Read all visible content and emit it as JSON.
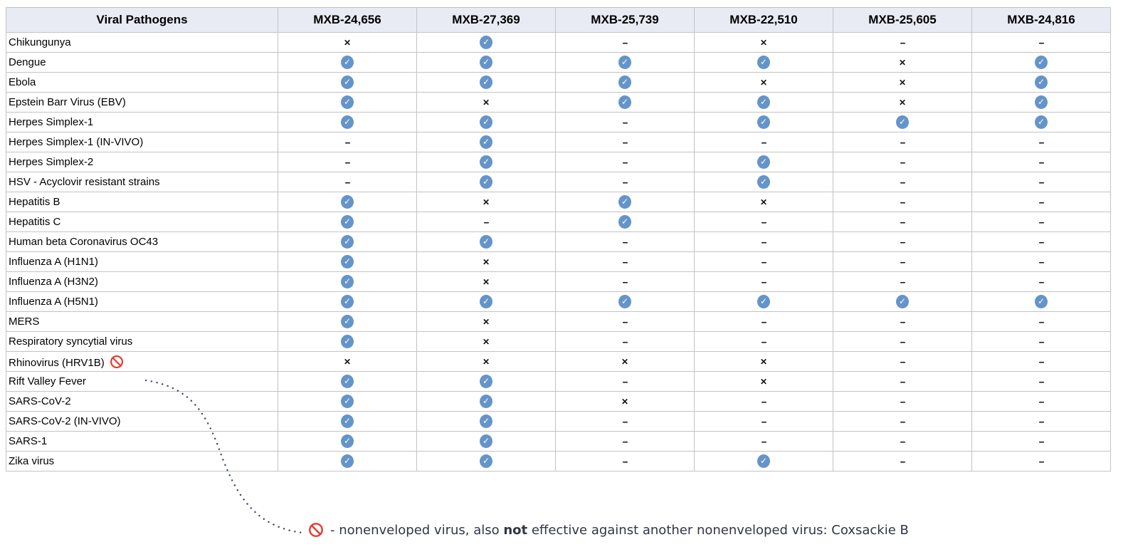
{
  "table": {
    "columns": [
      "Viral Pathogens",
      "MXB-24,656",
      "MXB-27,369",
      "MXB-25,739",
      "MXB-22,510",
      "MXB-25,605",
      "MXB-24,816"
    ],
    "rows": [
      {
        "pathogen": "Chikungunya",
        "banned": false,
        "results": [
          "x",
          "check",
          "dash",
          "x",
          "dash",
          "dash"
        ]
      },
      {
        "pathogen": "Dengue",
        "banned": false,
        "results": [
          "check",
          "check",
          "check",
          "check",
          "x",
          "check"
        ]
      },
      {
        "pathogen": "Ebola",
        "banned": false,
        "results": [
          "check",
          "check",
          "check",
          "x",
          "x",
          "check"
        ]
      },
      {
        "pathogen": "Epstein Barr Virus (EBV)",
        "banned": false,
        "results": [
          "check",
          "x",
          "check",
          "check",
          "x",
          "check"
        ]
      },
      {
        "pathogen": "Herpes Simplex-1",
        "banned": false,
        "results": [
          "check",
          "check",
          "dash",
          "check",
          "check",
          "check"
        ]
      },
      {
        "pathogen": "Herpes Simplex-1 (IN-VIVO)",
        "banned": false,
        "results": [
          "dash",
          "check",
          "dash",
          "dash",
          "dash",
          "dash"
        ]
      },
      {
        "pathogen": "Herpes Simplex-2",
        "banned": false,
        "results": [
          "dash",
          "check",
          "dash",
          "check",
          "dash",
          "dash"
        ]
      },
      {
        "pathogen": "HSV - Acyclovir resistant strains",
        "banned": false,
        "results": [
          "dash",
          "check",
          "dash",
          "check",
          "dash",
          "dash"
        ]
      },
      {
        "pathogen": "Hepatitis B",
        "banned": false,
        "results": [
          "check",
          "x",
          "check",
          "x",
          "dash",
          "dash"
        ]
      },
      {
        "pathogen": "Hepatitis C",
        "banned": false,
        "results": [
          "check",
          "dash",
          "check",
          "dash",
          "dash",
          "dash"
        ]
      },
      {
        "pathogen": "Human beta Coronavirus OC43",
        "banned": false,
        "results": [
          "check",
          "check",
          "dash",
          "dash",
          "dash",
          "dash"
        ]
      },
      {
        "pathogen": "Influenza A (H1N1)",
        "banned": false,
        "results": [
          "check",
          "x",
          "dash",
          "dash",
          "dash",
          "dash"
        ]
      },
      {
        "pathogen": "Influenza A (H3N2)",
        "banned": false,
        "results": [
          "check",
          "x",
          "dash",
          "dash",
          "dash",
          "dash"
        ]
      },
      {
        "pathogen": "Influenza A (H5N1)",
        "banned": false,
        "results": [
          "check",
          "check",
          "check",
          "check",
          "check",
          "check"
        ]
      },
      {
        "pathogen": "MERS",
        "banned": false,
        "results": [
          "check",
          "x",
          "dash",
          "dash",
          "dash",
          "dash"
        ]
      },
      {
        "pathogen": "Respiratory syncytial virus",
        "banned": false,
        "results": [
          "check",
          "x",
          "dash",
          "dash",
          "dash",
          "dash"
        ]
      },
      {
        "pathogen": "Rhinovirus (HRV1B)",
        "banned": true,
        "results": [
          "x",
          "x",
          "x",
          "x",
          "dash",
          "dash"
        ]
      },
      {
        "pathogen": "Rift Valley Fever",
        "banned": false,
        "results": [
          "check",
          "check",
          "dash",
          "x",
          "dash",
          "dash"
        ]
      },
      {
        "pathogen": "SARS-CoV-2",
        "banned": false,
        "results": [
          "check",
          "check",
          "x",
          "dash",
          "dash",
          "dash"
        ]
      },
      {
        "pathogen": "SARS-CoV-2 (IN-VIVO)",
        "banned": false,
        "results": [
          "check",
          "check",
          "dash",
          "dash",
          "dash",
          "dash"
        ]
      },
      {
        "pathogen": "SARS-1",
        "banned": false,
        "results": [
          "check",
          "check",
          "dash",
          "dash",
          "dash",
          "dash"
        ]
      },
      {
        "pathogen": "Zika virus",
        "banned": false,
        "results": [
          "check",
          "check",
          "dash",
          "check",
          "dash",
          "dash"
        ]
      }
    ]
  },
  "glyphs": {
    "check": "✓",
    "x": "✕",
    "dash": "--"
  },
  "footnote": {
    "prefix": "- nonenveloped virus, also ",
    "bold": "not",
    "suffix": " effective against another nonenveloped virus: Coxsackie B"
  },
  "colors": {
    "check_blue": "#6494ca",
    "ban_red": "#e8382c",
    "header_bg": "#e9ebf4",
    "border_gray": "#c3c3c3",
    "dot_navy": "#3d4a66",
    "footnote_text": "#2e3645"
  }
}
